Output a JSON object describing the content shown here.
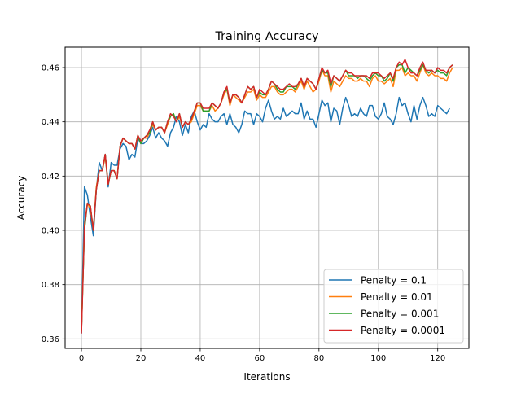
{
  "chart_data": {
    "type": "line",
    "title": "Training Accuracy",
    "xlabel": "Iterations",
    "ylabel": "Accuracy",
    "xlim": [
      -5.5,
      130.5
    ],
    "ylim": [
      0.3565,
      0.4675
    ],
    "xticks": [
      0,
      20,
      40,
      60,
      80,
      100,
      120
    ],
    "xtick_labels": [
      "0",
      "20",
      "40",
      "60",
      "80",
      "100",
      "120"
    ],
    "yticks": [
      0.36,
      0.38,
      0.4,
      0.42,
      0.44,
      0.46
    ],
    "ytick_labels": [
      "0.36",
      "0.38",
      "0.40",
      "0.42",
      "0.44",
      "0.46"
    ],
    "grid": true,
    "legend_position": "lower-right",
    "series": [
      {
        "name": "Penalty = 0.1",
        "color": "#1f77b4",
        "values": [
          0.362,
          0.416,
          0.413,
          0.405,
          0.398,
          0.415,
          0.425,
          0.422,
          0.428,
          0.416,
          0.425,
          0.424,
          0.424,
          0.43,
          0.432,
          0.431,
          0.426,
          0.428,
          0.427,
          0.434,
          0.432,
          0.432,
          0.433,
          0.435,
          0.438,
          0.434,
          0.436,
          0.434,
          0.433,
          0.431,
          0.436,
          0.438,
          0.442,
          0.44,
          0.435,
          0.439,
          0.436,
          0.442,
          0.444,
          0.44,
          0.437,
          0.439,
          0.438,
          0.443,
          0.441,
          0.44,
          0.44,
          0.442,
          0.443,
          0.439,
          0.443,
          0.439,
          0.438,
          0.436,
          0.439,
          0.444,
          0.443,
          0.443,
          0.439,
          0.443,
          0.442,
          0.44,
          0.445,
          0.448,
          0.444,
          0.441,
          0.442,
          0.441,
          0.445,
          0.442,
          0.443,
          0.444,
          0.443,
          0.443,
          0.447,
          0.441,
          0.444,
          0.441,
          0.441,
          0.438,
          0.443,
          0.448,
          0.446,
          0.447,
          0.44,
          0.445,
          0.444,
          0.439,
          0.445,
          0.449,
          0.446,
          0.442,
          0.443,
          0.442,
          0.445,
          0.443,
          0.442,
          0.446,
          0.446,
          0.442,
          0.441,
          0.443,
          0.447,
          0.442,
          0.441,
          0.439,
          0.443,
          0.449,
          0.446,
          0.447,
          0.443,
          0.44,
          0.446,
          0.441,
          0.446,
          0.449,
          0.446,
          0.442,
          0.443,
          0.442,
          0.446,
          0.445,
          0.444,
          0.443,
          0.445
        ]
      },
      {
        "name": "Penalty = 0.01",
        "color": "#ff7f0e",
        "values": [
          0.363,
          0.402,
          0.41,
          0.408,
          0.4,
          0.416,
          0.422,
          0.422,
          0.427,
          0.417,
          0.422,
          0.422,
          0.419,
          0.431,
          0.434,
          0.433,
          0.432,
          0.432,
          0.43,
          0.435,
          0.432,
          0.434,
          0.434,
          0.436,
          0.439,
          0.437,
          0.438,
          0.438,
          0.436,
          0.439,
          0.442,
          0.443,
          0.44,
          0.442,
          0.438,
          0.44,
          0.439,
          0.44,
          0.443,
          0.446,
          0.446,
          0.444,
          0.444,
          0.444,
          0.446,
          0.444,
          0.445,
          0.447,
          0.45,
          0.452,
          0.446,
          0.45,
          0.449,
          0.448,
          0.447,
          0.449,
          0.451,
          0.451,
          0.452,
          0.448,
          0.45,
          0.449,
          0.449,
          0.451,
          0.453,
          0.453,
          0.451,
          0.45,
          0.45,
          0.451,
          0.452,
          0.452,
          0.451,
          0.453,
          0.455,
          0.452,
          0.455,
          0.453,
          0.451,
          0.452,
          0.455,
          0.459,
          0.457,
          0.457,
          0.451,
          0.455,
          0.454,
          0.453,
          0.455,
          0.457,
          0.456,
          0.456,
          0.455,
          0.455,
          0.456,
          0.455,
          0.455,
          0.453,
          0.456,
          0.457,
          0.455,
          0.455,
          0.454,
          0.455,
          0.456,
          0.453,
          0.459,
          0.459,
          0.46,
          0.457,
          0.458,
          0.457,
          0.457,
          0.455,
          0.458,
          0.461,
          0.458,
          0.457,
          0.458,
          0.457,
          0.457,
          0.456,
          0.456,
          0.455,
          0.458,
          0.46
        ]
      },
      {
        "name": "Penalty = 0.001",
        "color": "#2ca02c",
        "values": [
          0.363,
          0.4,
          0.41,
          0.409,
          0.4,
          0.415,
          0.422,
          0.422,
          0.428,
          0.417,
          0.422,
          0.422,
          0.419,
          0.431,
          0.434,
          0.433,
          0.432,
          0.432,
          0.43,
          0.435,
          0.432,
          0.434,
          0.435,
          0.436,
          0.44,
          0.437,
          0.438,
          0.438,
          0.436,
          0.44,
          0.442,
          0.443,
          0.44,
          0.443,
          0.438,
          0.44,
          0.439,
          0.441,
          0.444,
          0.447,
          0.447,
          0.444,
          0.444,
          0.444,
          0.447,
          0.446,
          0.445,
          0.447,
          0.451,
          0.452,
          0.447,
          0.45,
          0.45,
          0.449,
          0.447,
          0.45,
          0.453,
          0.452,
          0.453,
          0.449,
          0.451,
          0.45,
          0.45,
          0.452,
          0.455,
          0.454,
          0.452,
          0.451,
          0.451,
          0.453,
          0.453,
          0.453,
          0.452,
          0.454,
          0.456,
          0.453,
          0.456,
          0.455,
          0.454,
          0.452,
          0.456,
          0.459,
          0.458,
          0.458,
          0.453,
          0.457,
          0.456,
          0.455,
          0.457,
          0.459,
          0.457,
          0.457,
          0.457,
          0.456,
          0.457,
          0.457,
          0.456,
          0.455,
          0.457,
          0.458,
          0.457,
          0.457,
          0.455,
          0.456,
          0.458,
          0.455,
          0.46,
          0.461,
          0.461,
          0.458,
          0.46,
          0.459,
          0.458,
          0.457,
          0.459,
          0.461,
          0.459,
          0.458,
          0.459,
          0.458,
          0.459,
          0.458,
          0.458,
          0.457,
          0.46,
          0.461
        ]
      },
      {
        "name": "Penalty = 0.0001",
        "color": "#d62728",
        "values": [
          0.362,
          0.401,
          0.41,
          0.409,
          0.4,
          0.415,
          0.422,
          0.422,
          0.428,
          0.417,
          0.422,
          0.422,
          0.419,
          0.431,
          0.434,
          0.433,
          0.432,
          0.432,
          0.43,
          0.435,
          0.433,
          0.434,
          0.435,
          0.437,
          0.44,
          0.437,
          0.438,
          0.438,
          0.436,
          0.44,
          0.443,
          0.442,
          0.44,
          0.443,
          0.438,
          0.44,
          0.439,
          0.441,
          0.444,
          0.447,
          0.447,
          0.445,
          0.445,
          0.445,
          0.447,
          0.446,
          0.445,
          0.447,
          0.451,
          0.453,
          0.447,
          0.45,
          0.45,
          0.449,
          0.447,
          0.45,
          0.453,
          0.452,
          0.453,
          0.449,
          0.452,
          0.451,
          0.45,
          0.452,
          0.455,
          0.454,
          0.453,
          0.452,
          0.452,
          0.453,
          0.454,
          0.453,
          0.453,
          0.454,
          0.456,
          0.453,
          0.456,
          0.455,
          0.454,
          0.452,
          0.456,
          0.46,
          0.458,
          0.459,
          0.454,
          0.457,
          0.456,
          0.455,
          0.457,
          0.459,
          0.458,
          0.458,
          0.457,
          0.457,
          0.457,
          0.457,
          0.457,
          0.456,
          0.458,
          0.458,
          0.458,
          0.457,
          0.456,
          0.457,
          0.458,
          0.456,
          0.46,
          0.462,
          0.461,
          0.463,
          0.46,
          0.458,
          0.458,
          0.457,
          0.46,
          0.462,
          0.459,
          0.459,
          0.459,
          0.458,
          0.46,
          0.459,
          0.459,
          0.458,
          0.46,
          0.461
        ]
      }
    ]
  }
}
